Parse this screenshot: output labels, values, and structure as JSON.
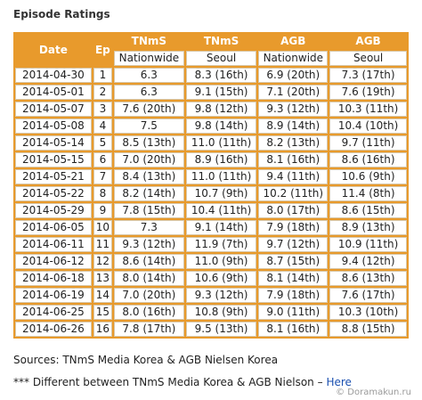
{
  "title": "Episode Ratings",
  "table": {
    "header": [
      "Date",
      "Ep",
      "TNmS",
      "TNmS",
      "AGB",
      "AGB"
    ],
    "subheader": [
      "Nationwide",
      "Seoul",
      "Nationwide",
      "Seoul"
    ],
    "rows": [
      [
        "2014-04-30",
        "1",
        "6.3",
        "8.3 (16th)",
        "6.9 (20th)",
        "7.3 (17th)"
      ],
      [
        "2014-05-01",
        "2",
        "6.3",
        "9.1 (15th)",
        "7.1 (20th)",
        "7.6 (19th)"
      ],
      [
        "2014-05-07",
        "3",
        "7.6 (20th)",
        "9.8 (12th)",
        "9.3 (12th)",
        "10.3 (11th)"
      ],
      [
        "2014-05-08",
        "4",
        "7.5",
        "9.8 (14th)",
        "8.9 (14th)",
        "10.4 (10th)"
      ],
      [
        "2014-05-14",
        "5",
        "8.5 (13th)",
        "11.0 (11th)",
        "8.2 (13th)",
        "9.7 (11th)"
      ],
      [
        "2014-05-15",
        "6",
        "7.0 (20th)",
        "8.9 (16th)",
        "8.1 (16th)",
        "8.6 (16th)"
      ],
      [
        "2014-05-21",
        "7",
        "8.4 (13th)",
        "11.0 (11th)",
        "9.4 (11th)",
        "10.6 (9th)"
      ],
      [
        "2014-05-22",
        "8",
        "8.2 (14th)",
        "10.7 (9th)",
        "10.2 (11th)",
        "11.4 (8th)"
      ],
      [
        "2014-05-29",
        "9",
        "7.8 (15th)",
        "10.4 (11th)",
        "8.0 (17th)",
        "8.6 (15th)"
      ],
      [
        "2014-06-05",
        "10",
        "7.3",
        "9.1 (14th)",
        "7.9 (18th)",
        "8.9 (13th)"
      ],
      [
        "2014-06-11",
        "11",
        "9.3 (12th)",
        "11.9 (7th)",
        "9.7 (12th)",
        "10.9 (11th)"
      ],
      [
        "2014-06-12",
        "12",
        "8.6 (14th)",
        "11.0 (9th)",
        "8.7 (15th)",
        "9.4 (12th)"
      ],
      [
        "2014-06-18",
        "13",
        "8.0 (14th)",
        "10.6 (9th)",
        "8.1 (14th)",
        "8.6 (13th)"
      ],
      [
        "2014-06-19",
        "14",
        "7.0 (20th)",
        "9.3 (12th)",
        "7.9 (18th)",
        "7.6 (17th)"
      ],
      [
        "2014-06-25",
        "15",
        "8.0 (16th)",
        "10.8 (9th)",
        "9.0 (11th)",
        "10.3 (10th)"
      ],
      [
        "2014-06-26",
        "16",
        "7.8 (17th)",
        "9.5 (13th)",
        "8.1 (16th)",
        "8.8 (15th)"
      ]
    ]
  },
  "sources": "Sources: TNmS Media Korea & AGB Nielsen Korea",
  "note": {
    "text": "*** Different between TNmS Media Korea & AGB Nielson –",
    "link": "Here"
  },
  "watermark": "© Doramakun.ru"
}
